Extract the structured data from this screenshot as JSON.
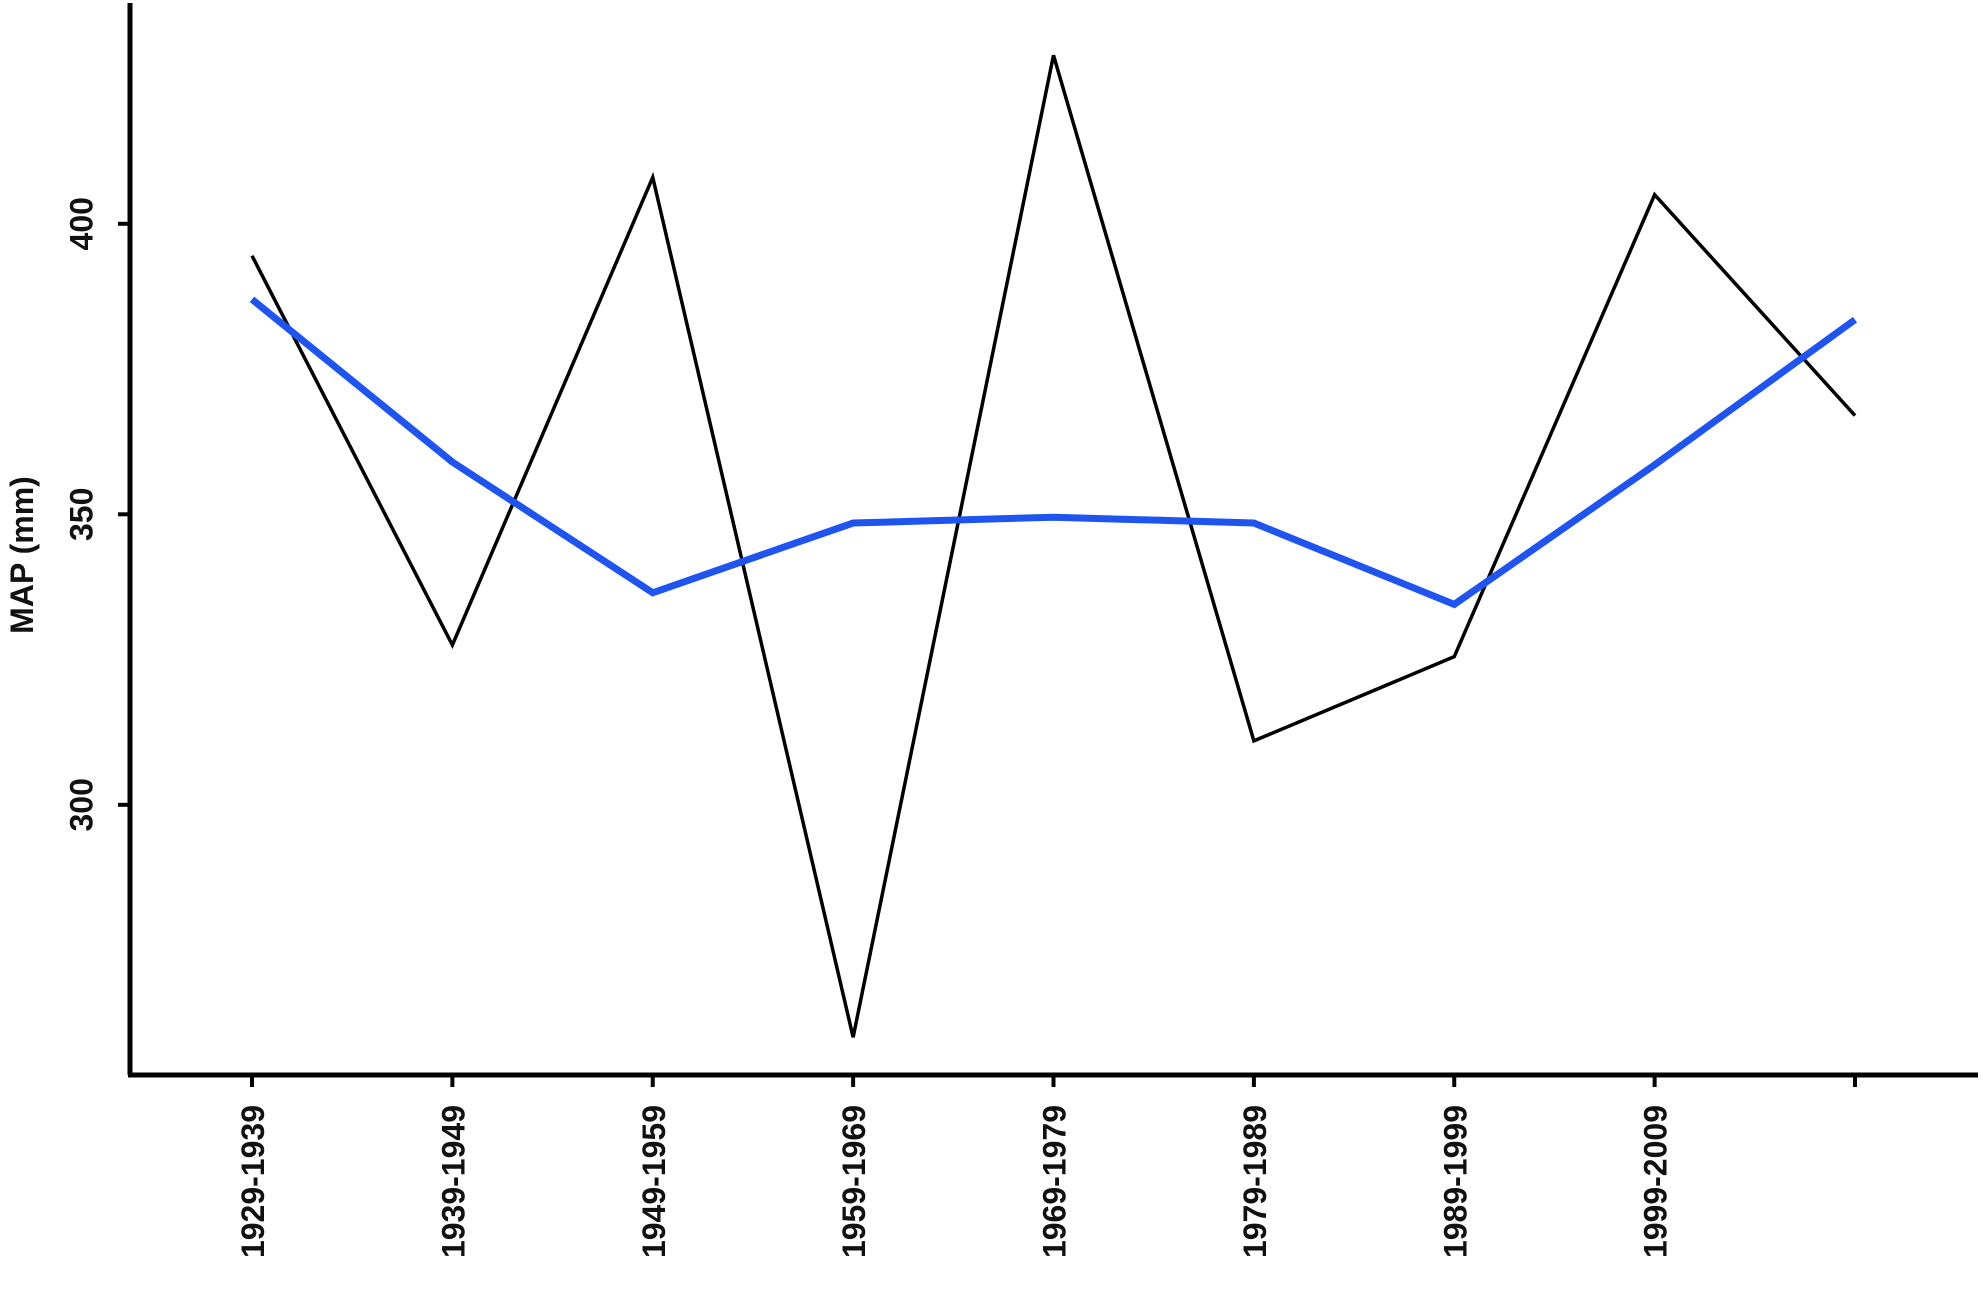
{
  "chart_data": {
    "type": "line",
    "title": "",
    "xlabel": "",
    "ylabel": "MAP (mm)",
    "categories": [
      "1929-1939",
      "1939-1949",
      "1949-1959",
      "1959-1969",
      "1969-1979",
      "1979-1989",
      "1989-1999",
      "1999-2009",
      ""
    ],
    "y_ticks": [
      300,
      350,
      400
    ],
    "ylim": [
      253.5,
      438
    ],
    "grid": false,
    "legend": "none",
    "series": [
      {
        "color": "#000000",
        "values": [
          394.5,
          327.5,
          408,
          260,
          429,
          311,
          325.5,
          405,
          367
        ]
      },
      {
        "color": "#1f55ee",
        "values": [
          387,
          359,
          336.5,
          348.5,
          349.5,
          348.5,
          334.5,
          358.5,
          383.5
        ]
      }
    ]
  }
}
